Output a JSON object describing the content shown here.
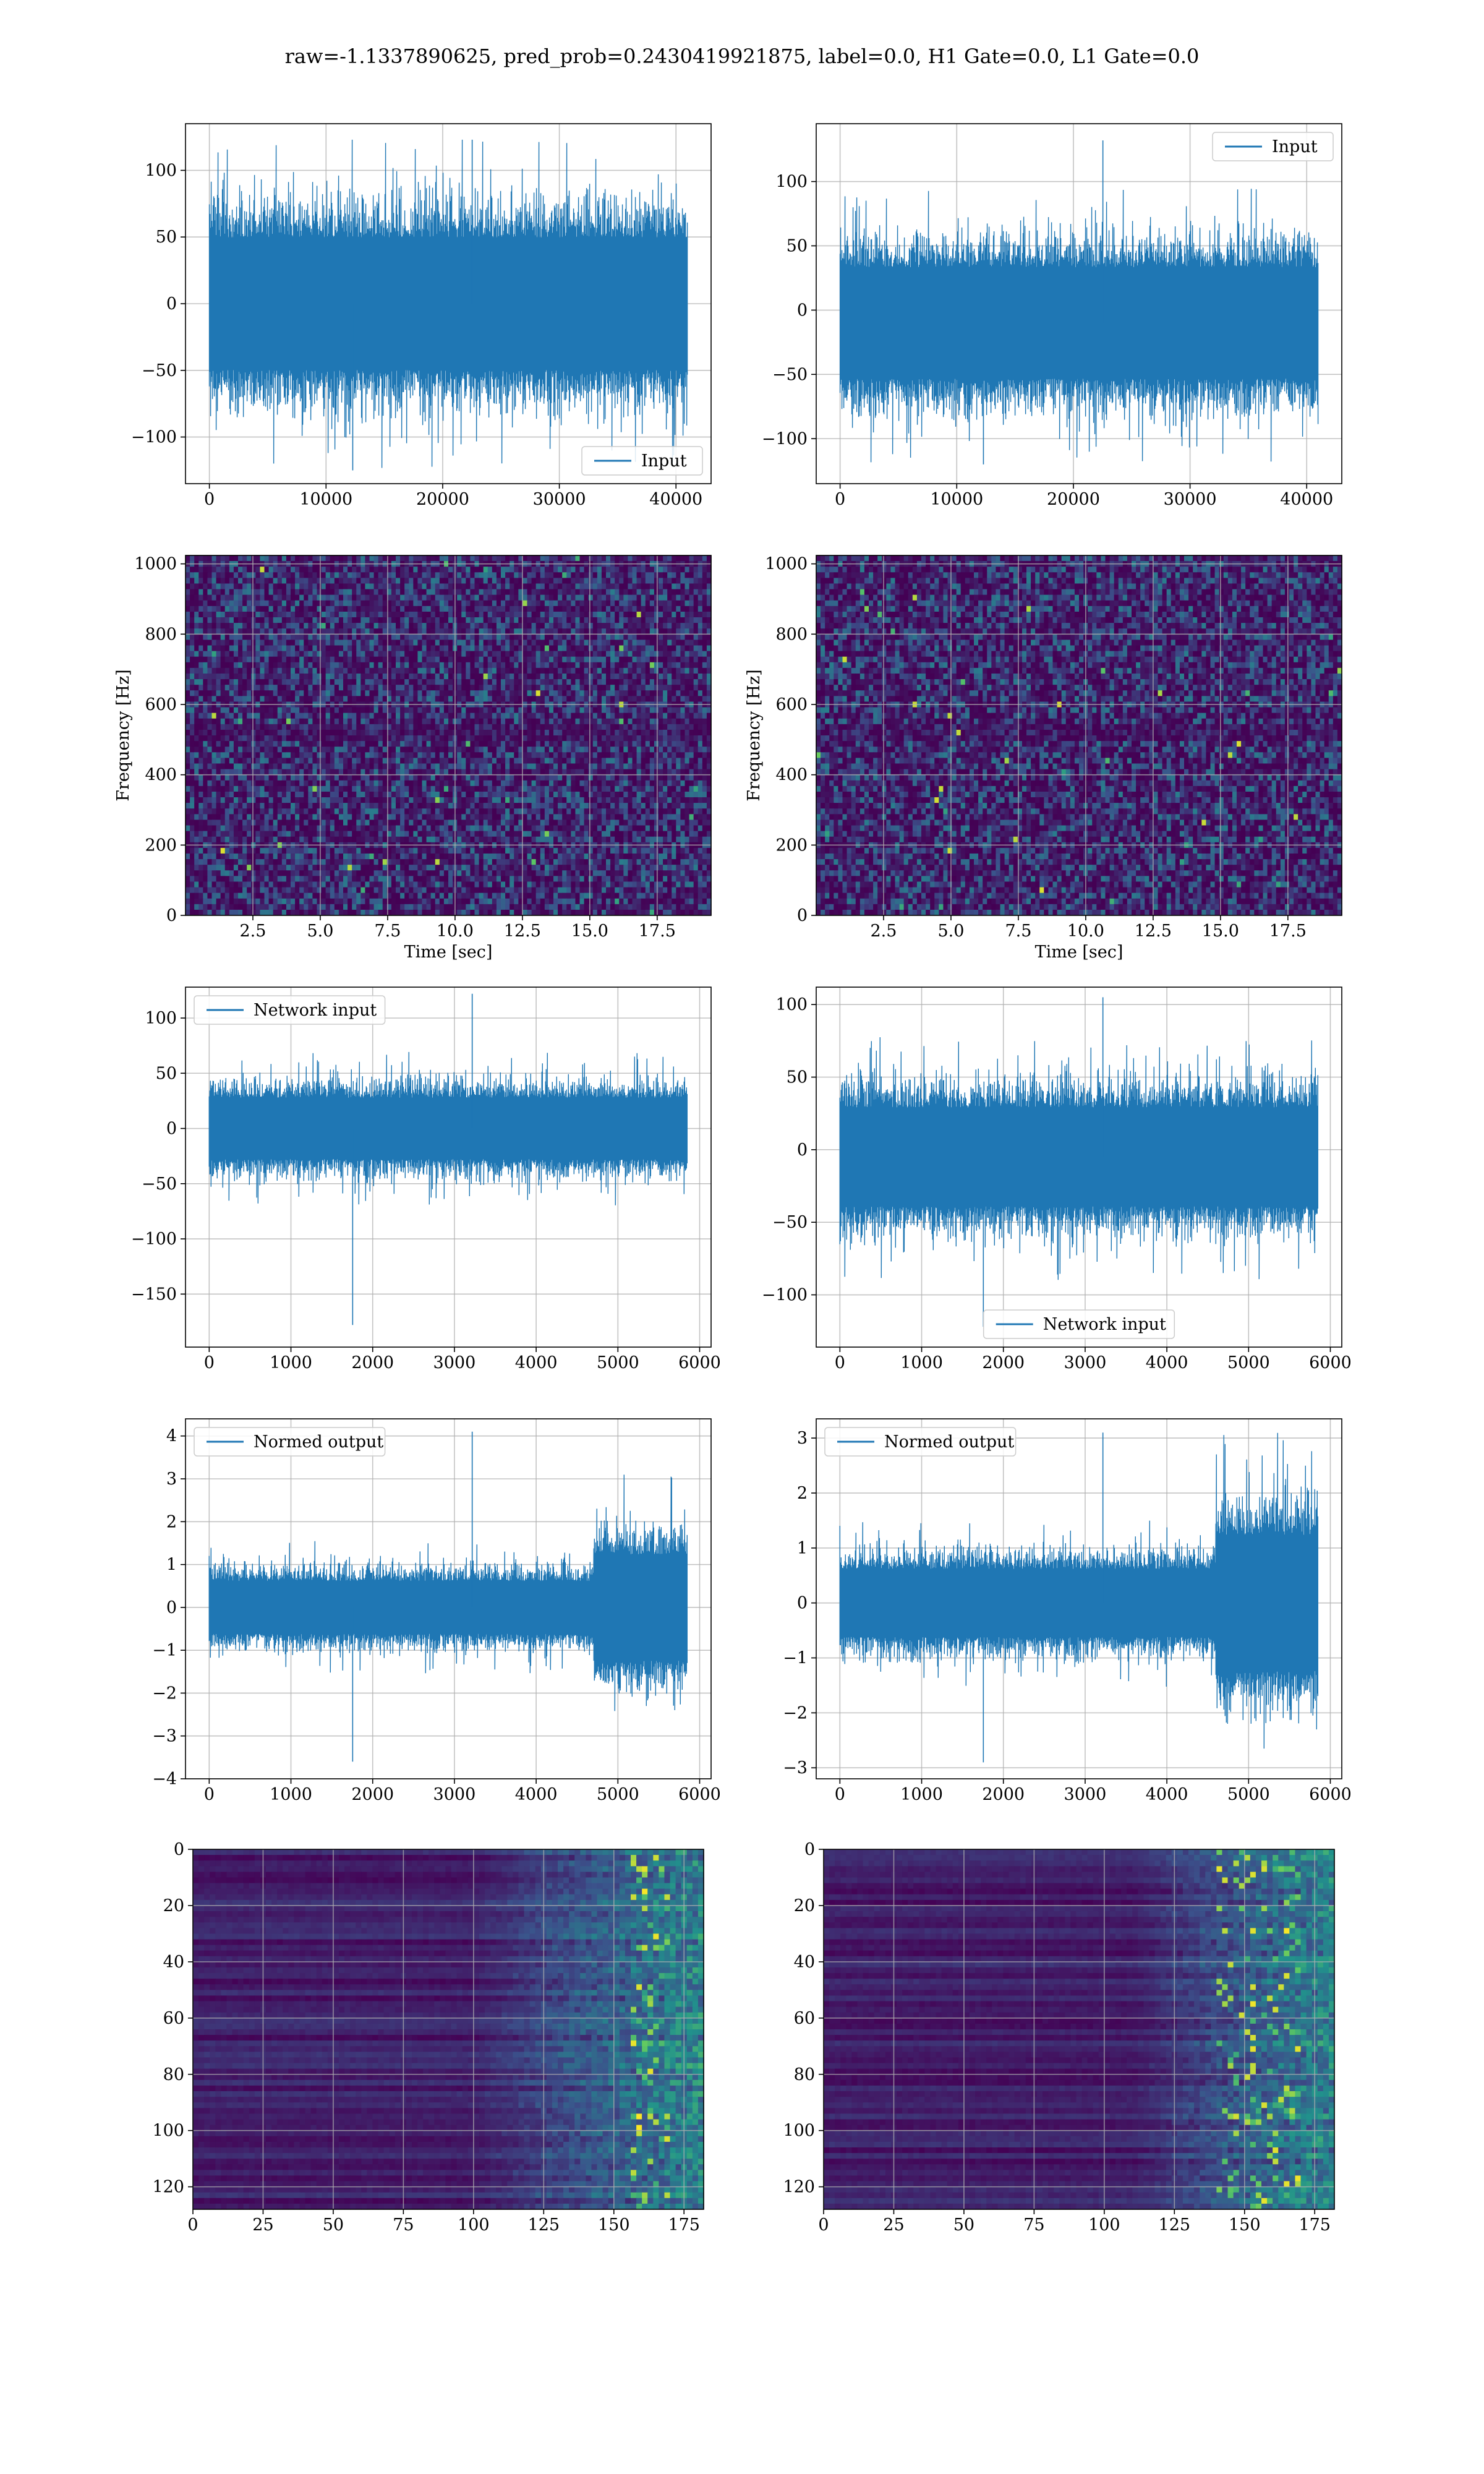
{
  "figure": {
    "title": "raw=-1.1337890625, pred_prob=0.2430419921875, label=0.0, H1 Gate=0.0, L1 Gate=0.0",
    "line_color": "#1f77b4",
    "grid_color": "#b0b0b0",
    "heatmap_palette": [
      "#440154",
      "#3b528b",
      "#21918c",
      "#5ec962",
      "#fde725"
    ]
  },
  "chart_data": [
    {
      "id": "h1_input",
      "type": "line",
      "series": [
        {
          "name": "Input",
          "n": 40960,
          "mean": 0,
          "typical_amplitude": 80,
          "min": -125,
          "max": 123
        }
      ],
      "xlim": [
        -2048,
        43008
      ],
      "ylim": [
        -135,
        135
      ],
      "xticks": [
        0,
        10000,
        20000,
        30000,
        40000
      ],
      "xtick_labels": [
        "0",
        "10000",
        "20000",
        "30000",
        "40000"
      ],
      "yticks": [
        -100,
        -50,
        0,
        50,
        100
      ],
      "ytick_labels": [
        "−100",
        "−50",
        "0",
        "50",
        "100"
      ],
      "xlabel": "",
      "ylabel": "",
      "legend": "lower right",
      "grid": true
    },
    {
      "id": "l1_input",
      "type": "line",
      "series": [
        {
          "name": "Input",
          "n": 40960,
          "mean": -10,
          "typical_amplitude": 70,
          "min": -120,
          "max": 132
        }
      ],
      "xlim": [
        -2048,
        43008
      ],
      "ylim": [
        -135,
        145
      ],
      "xticks": [
        0,
        10000,
        20000,
        30000,
        40000
      ],
      "xtick_labels": [
        "0",
        "10000",
        "20000",
        "30000",
        "40000"
      ],
      "yticks": [
        -100,
        -50,
        0,
        50,
        100
      ],
      "ytick_labels": [
        "−100",
        "−50",
        "0",
        "50",
        "100"
      ],
      "xlabel": "",
      "ylabel": "",
      "legend": "upper right",
      "grid": true
    },
    {
      "id": "h1_spectrogram",
      "type": "heatmap",
      "colormap": "viridis",
      "xlim": [
        0,
        19.5
      ],
      "ylim": [
        0,
        1024
      ],
      "xticks": [
        2.5,
        5.0,
        7.5,
        10.0,
        12.5,
        15.0,
        17.5
      ],
      "xtick_labels": [
        "2.5",
        "5.0",
        "7.5",
        "10.0",
        "12.5",
        "15.0",
        "17.5"
      ],
      "yticks": [
        0,
        200,
        400,
        600,
        800,
        1000
      ],
      "ytick_labels": [
        "0",
        "200",
        "400",
        "600",
        "800",
        "1000"
      ],
      "xlabel": "Time [sec]",
      "ylabel": "Frequency [Hz]",
      "grid": true
    },
    {
      "id": "l1_spectrogram",
      "type": "heatmap",
      "colormap": "viridis",
      "xlim": [
        0,
        19.5
      ],
      "ylim": [
        0,
        1024
      ],
      "xticks": [
        2.5,
        5.0,
        7.5,
        10.0,
        12.5,
        15.0,
        17.5
      ],
      "xtick_labels": [
        "2.5",
        "5.0",
        "7.5",
        "10.0",
        "12.5",
        "15.0",
        "17.5"
      ],
      "yticks": [
        0,
        200,
        400,
        600,
        800,
        1000
      ],
      "ytick_labels": [
        "0",
        "200",
        "400",
        "600",
        "800",
        "1000"
      ],
      "xlabel": "Time [sec]",
      "ylabel": "Frequency [Hz]",
      "grid": true
    },
    {
      "id": "h1_network_input",
      "type": "line",
      "series": [
        {
          "name": "Network input",
          "n": 5850,
          "mean": 0,
          "typical_amplitude": 45,
          "min": -178,
          "max": 122
        }
      ],
      "xlim": [
        -290,
        6140
      ],
      "ylim": [
        -198,
        128
      ],
      "xticks": [
        0,
        1000,
        2000,
        3000,
        4000,
        5000,
        6000
      ],
      "xtick_labels": [
        "0",
        "1000",
        "2000",
        "3000",
        "4000",
        "5000",
        "6000"
      ],
      "yticks": [
        -150,
        -100,
        -50,
        0,
        50,
        100
      ],
      "ytick_labels": [
        "−150",
        "−100",
        "−50",
        "0",
        "50",
        "100"
      ],
      "xlabel": "",
      "ylabel": "",
      "legend": "upper left",
      "grid": true
    },
    {
      "id": "l1_network_input",
      "type": "line",
      "series": [
        {
          "name": "Network input",
          "n": 5850,
          "mean": -5,
          "typical_amplitude": 55,
          "min": -122,
          "max": 105
        }
      ],
      "xlim": [
        -290,
        6140
      ],
      "ylim": [
        -136,
        112
      ],
      "xticks": [
        0,
        1000,
        2000,
        3000,
        4000,
        5000,
        6000
      ],
      "xtick_labels": [
        "0",
        "1000",
        "2000",
        "3000",
        "4000",
        "5000",
        "6000"
      ],
      "yticks": [
        -100,
        -50,
        0,
        50,
        100
      ],
      "ytick_labels": [
        "−100",
        "−50",
        "0",
        "50",
        "100"
      ],
      "xlabel": "",
      "ylabel": "",
      "legend": "lower center",
      "grid": true
    },
    {
      "id": "h1_normed_output",
      "type": "line",
      "series": [
        {
          "name": "Normed output",
          "n": 5850,
          "mean": 0,
          "typical_amplitude": 1.0,
          "late_segment_start": 4700,
          "late_amplitude": 2.0,
          "min": -3.6,
          "max": 4.1
        }
      ],
      "xlim": [
        -290,
        6140
      ],
      "ylim": [
        -4.0,
        4.4
      ],
      "xticks": [
        0,
        1000,
        2000,
        3000,
        4000,
        5000,
        6000
      ],
      "xtick_labels": [
        "0",
        "1000",
        "2000",
        "3000",
        "4000",
        "5000",
        "6000"
      ],
      "yticks": [
        -4,
        -3,
        -2,
        -1,
        0,
        1,
        2,
        3,
        4
      ],
      "ytick_labels": [
        "−4",
        "−3",
        "−2",
        "−1",
        "0",
        "1",
        "2",
        "3",
        "4"
      ],
      "xlabel": "",
      "ylabel": "",
      "legend": "upper left",
      "grid": true
    },
    {
      "id": "l1_normed_output",
      "type": "line",
      "series": [
        {
          "name": "Normed output",
          "n": 5850,
          "mean": 0,
          "typical_amplitude": 1.0,
          "late_segment_start": 4600,
          "late_amplitude": 2.0,
          "min": -2.9,
          "max": 3.1
        }
      ],
      "xlim": [
        -290,
        6140
      ],
      "ylim": [
        -3.2,
        3.35
      ],
      "xticks": [
        0,
        1000,
        2000,
        3000,
        4000,
        5000,
        6000
      ],
      "xtick_labels": [
        "0",
        "1000",
        "2000",
        "3000",
        "4000",
        "5000",
        "6000"
      ],
      "yticks": [
        -3,
        -2,
        -1,
        0,
        1,
        2,
        3
      ],
      "ytick_labels": [
        "−3",
        "−2",
        "−1",
        "0",
        "1",
        "2",
        "3"
      ],
      "xlabel": "",
      "ylabel": "",
      "legend": "upper left",
      "grid": true
    },
    {
      "id": "h1_feature_map",
      "type": "heatmap",
      "colormap": "viridis",
      "rows": 128,
      "cols": 182,
      "active_from_col": 100,
      "hot_cols": [
        155,
        170
      ],
      "xlim": [
        0,
        182
      ],
      "ylim": [
        128,
        0
      ],
      "xticks": [
        0,
        25,
        50,
        75,
        100,
        125,
        150,
        175
      ],
      "xtick_labels": [
        "0",
        "25",
        "50",
        "75",
        "100",
        "125",
        "150",
        "175"
      ],
      "yticks": [
        0,
        20,
        40,
        60,
        80,
        100,
        120
      ],
      "ytick_labels": [
        "0",
        "20",
        "40",
        "60",
        "80",
        "100",
        "120"
      ],
      "xlabel": "",
      "ylabel": "",
      "grid": true
    },
    {
      "id": "l1_feature_map",
      "type": "heatmap",
      "colormap": "viridis",
      "rows": 128,
      "cols": 182,
      "active_from_col": 110,
      "hot_cols": [
        140,
        170
      ],
      "xlim": [
        0,
        182
      ],
      "ylim": [
        128,
        0
      ],
      "xticks": [
        0,
        25,
        50,
        75,
        100,
        125,
        150,
        175
      ],
      "xtick_labels": [
        "0",
        "25",
        "50",
        "75",
        "100",
        "125",
        "150",
        "175"
      ],
      "yticks": [
        0,
        20,
        40,
        60,
        80,
        100,
        120
      ],
      "ytick_labels": [
        "0",
        "20",
        "40",
        "60",
        "80",
        "100",
        "120"
      ],
      "xlabel": "",
      "ylabel": "",
      "grid": true
    }
  ]
}
